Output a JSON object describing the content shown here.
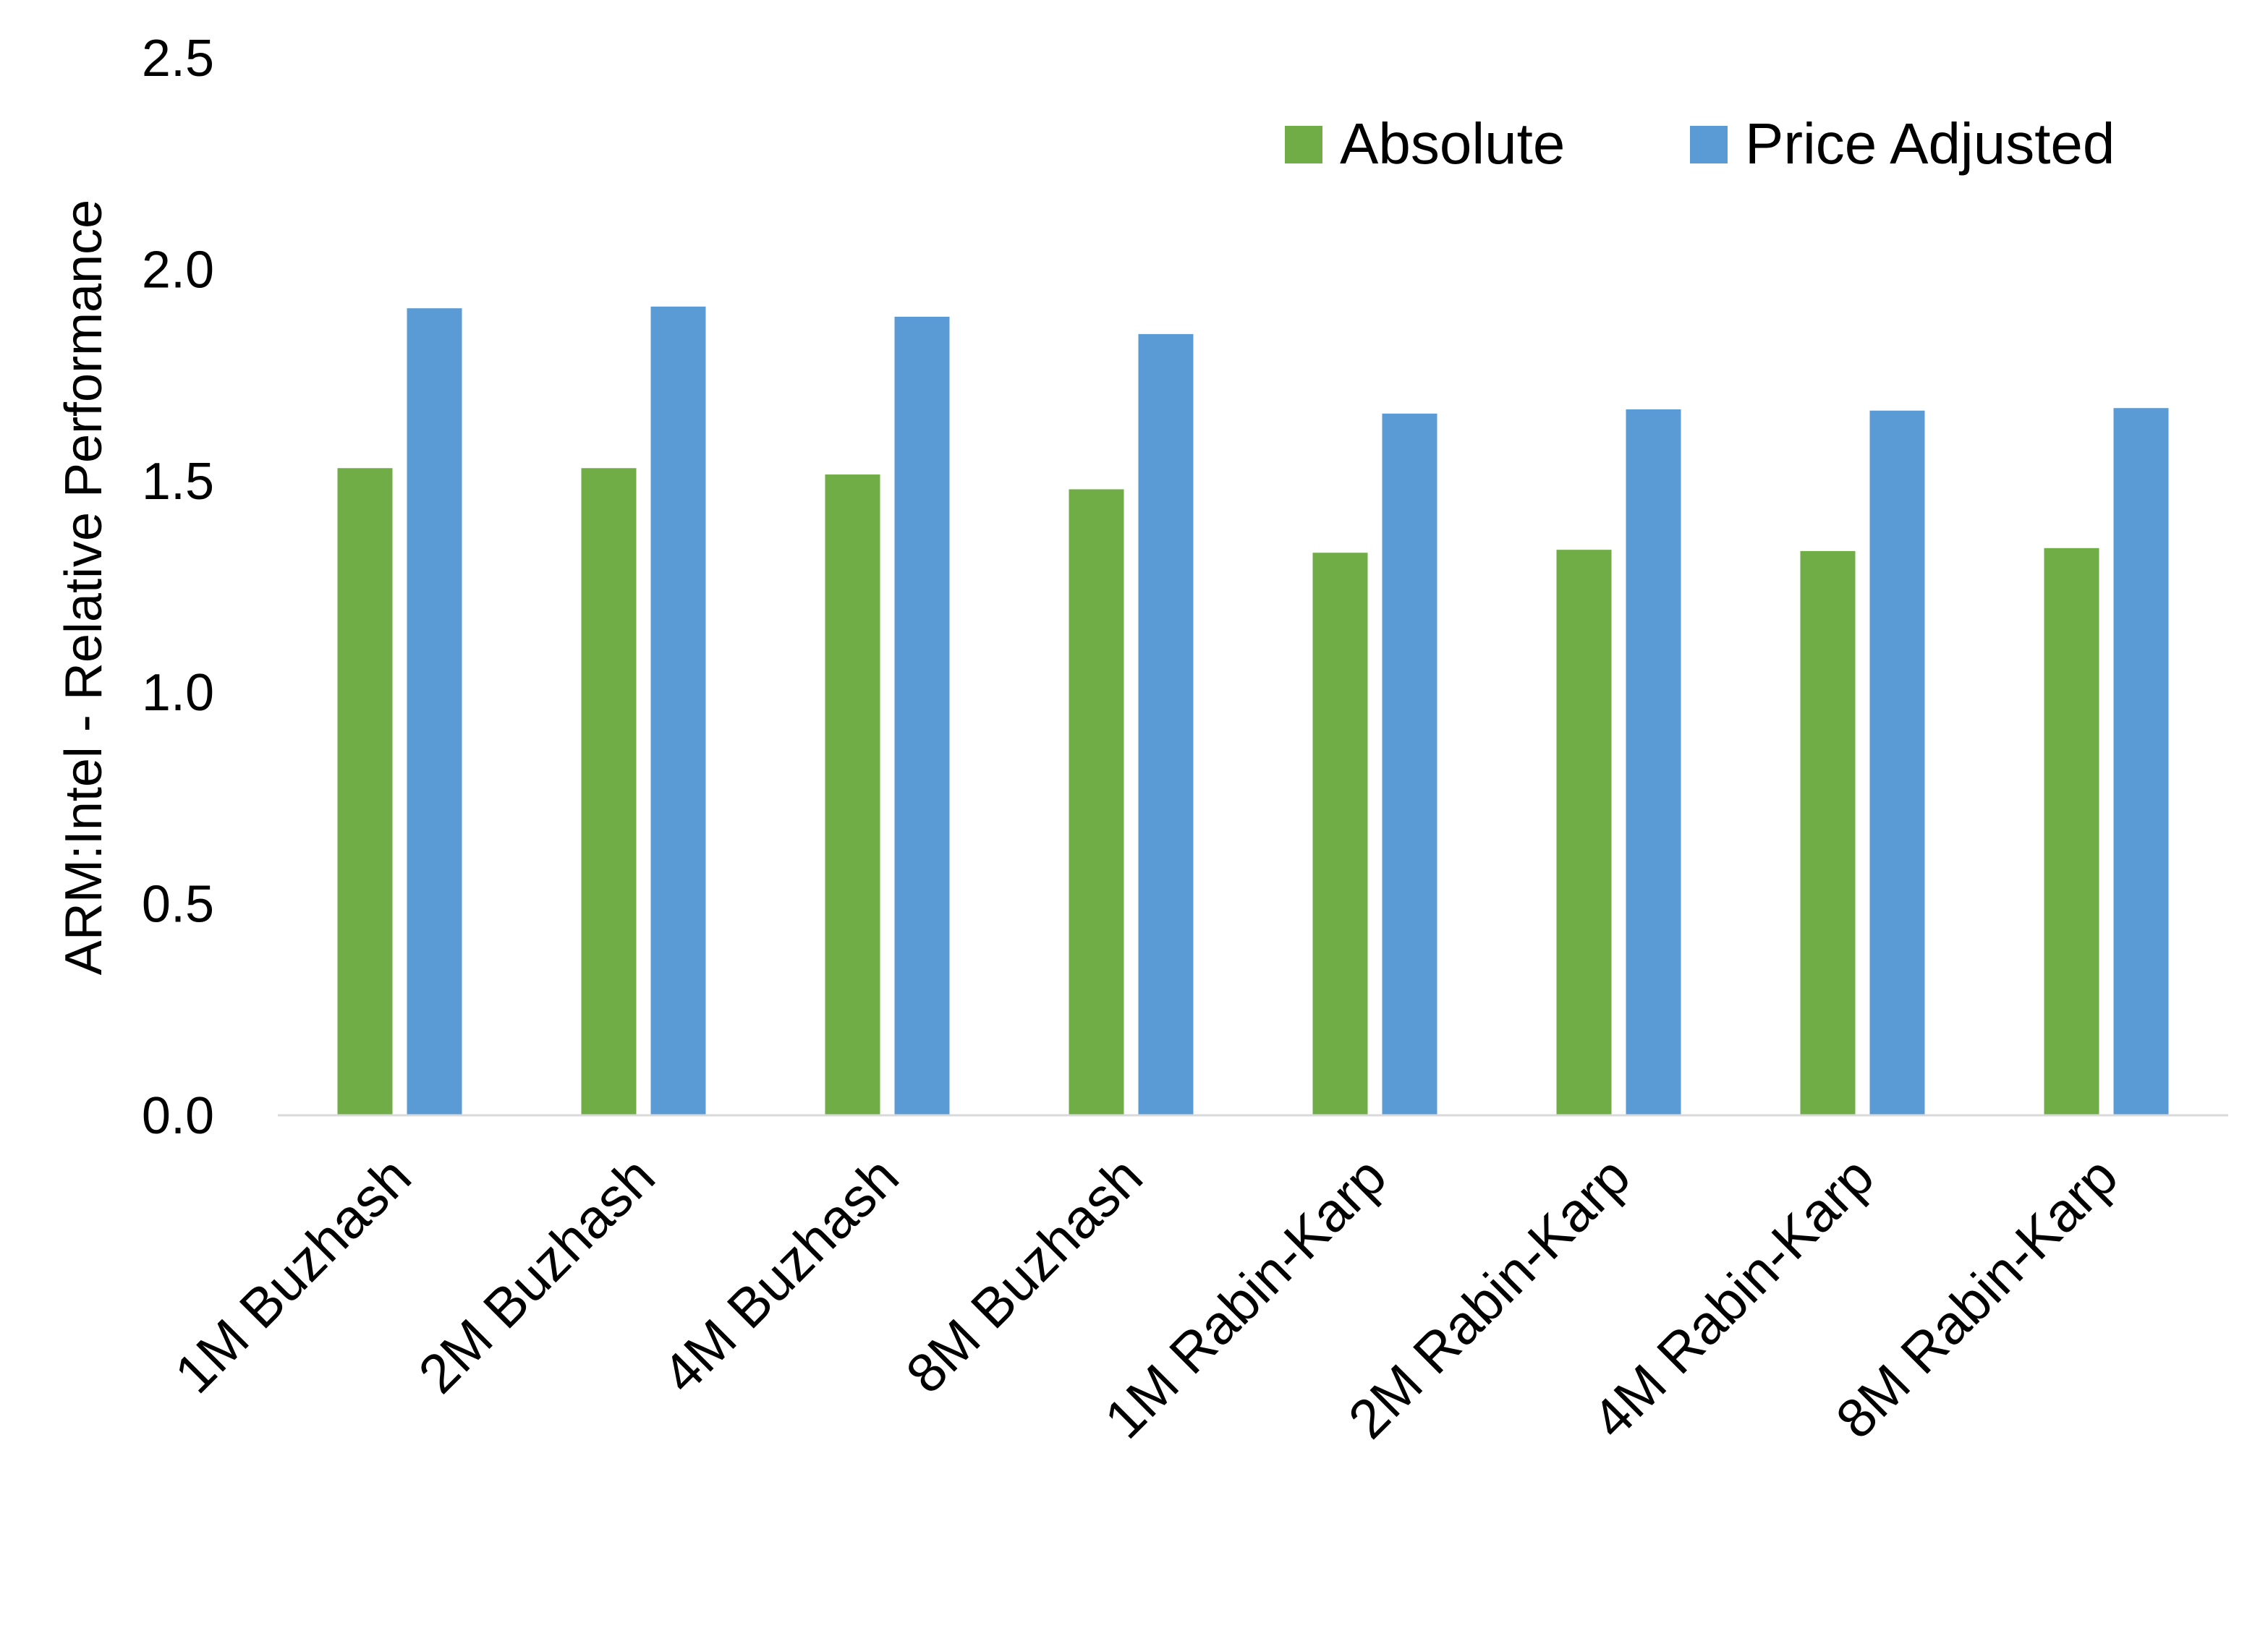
{
  "chart_data": {
    "type": "bar",
    "title": "",
    "xlabel": "",
    "ylabel": "ARM:Intel - Relative Performance",
    "ylim": [
      0,
      2.5
    ],
    "yticks": [
      "0.0",
      "0.5",
      "1.0",
      "1.5",
      "2.0",
      "2.5"
    ],
    "grid": false,
    "legend_placement": "top-right",
    "categories": [
      "1M Buzhash",
      "2M Buzhash",
      "4M Buzhash",
      "8M Buzhash",
      "1M Rabin-Karp",
      "2M Rabin-Karp",
      "4M Rabin-Karp",
      "8M Rabin-Karp"
    ],
    "series": [
      {
        "name": "Absolute",
        "color": "#70AD47",
        "values": [
          1.53,
          1.53,
          1.515,
          1.48,
          1.33,
          1.337,
          1.334,
          1.341
        ]
      },
      {
        "name": "Price Adjusted",
        "color": "#5B9BD5",
        "values": [
          1.908,
          1.912,
          1.888,
          1.847,
          1.659,
          1.669,
          1.666,
          1.672
        ]
      }
    ]
  }
}
